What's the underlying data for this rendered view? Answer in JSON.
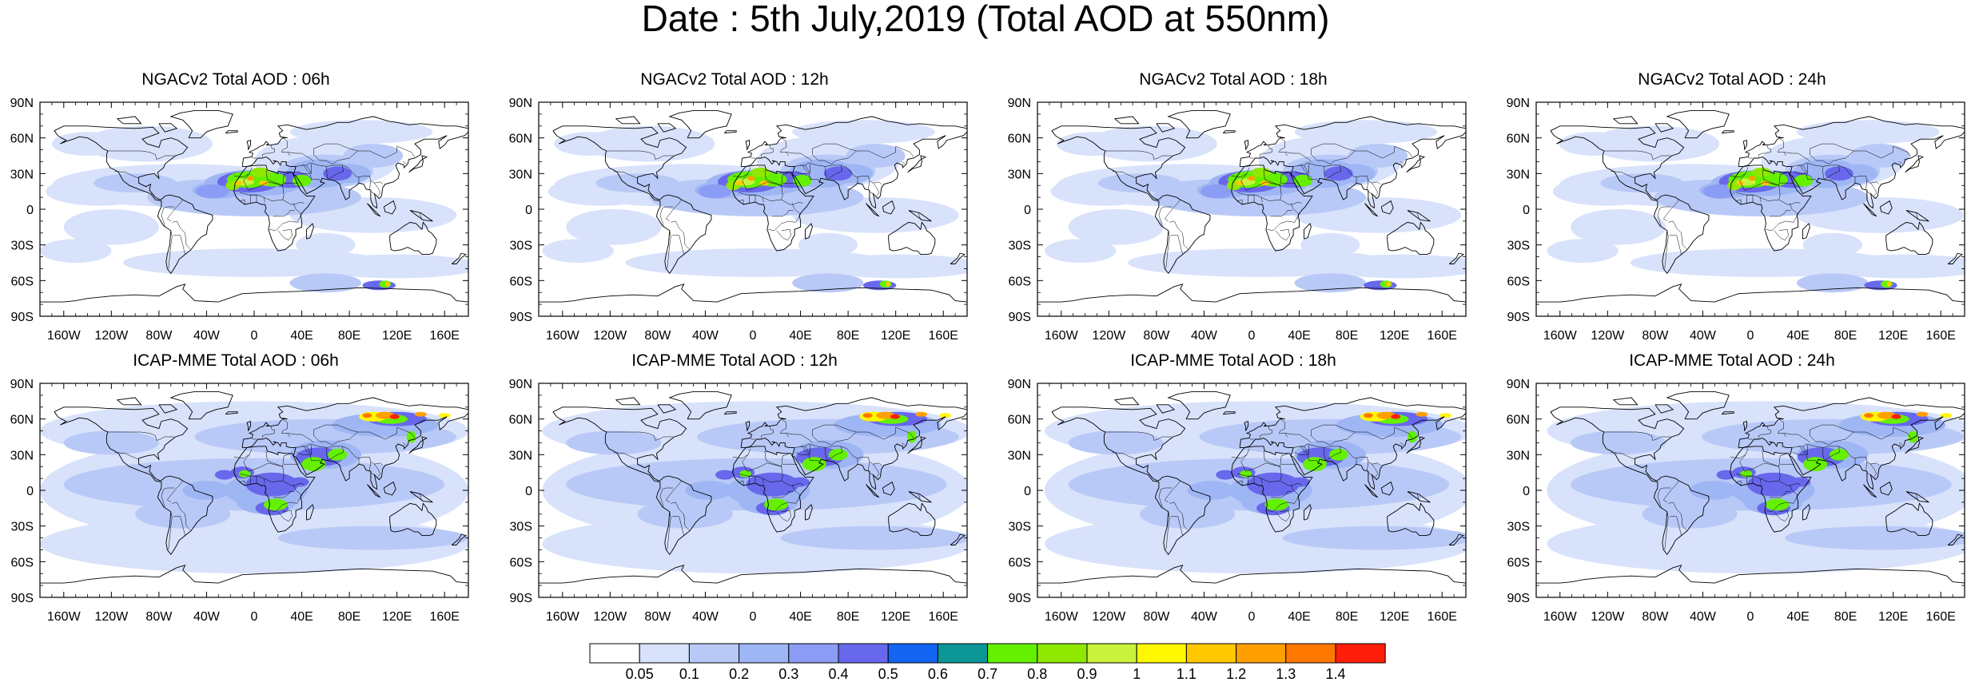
{
  "title": "Date : 5th July,2019 (Total AOD at 550nm)",
  "panels": [
    {
      "title": "NGACv2 Total AOD : 06h",
      "model": "NGACv2",
      "hour": "06h"
    },
    {
      "title": "NGACv2 Total AOD : 12h",
      "model": "NGACv2",
      "hour": "12h"
    },
    {
      "title": "NGACv2 Total AOD : 18h",
      "model": "NGACv2",
      "hour": "18h"
    },
    {
      "title": "NGACv2 Total AOD : 24h",
      "model": "NGACv2",
      "hour": "24h"
    },
    {
      "title": "ICAP-MME Total AOD : 06h",
      "model": "ICAP-MME",
      "hour": "06h"
    },
    {
      "title": "ICAP-MME Total AOD : 12h",
      "model": "ICAP-MME",
      "hour": "12h"
    },
    {
      "title": "ICAP-MME Total AOD : 18h",
      "model": "ICAP-MME",
      "hour": "18h"
    },
    {
      "title": "ICAP-MME Total AOD : 24h",
      "model": "ICAP-MME",
      "hour": "24h"
    }
  ],
  "axes": {
    "lat_labels": [
      "90N",
      "60N",
      "30N",
      "0",
      "30S",
      "60S",
      "90S"
    ],
    "lon_labels": [
      "160W",
      "120W",
      "80W",
      "40W",
      "0",
      "40E",
      "80E",
      "120E",
      "160E"
    ]
  },
  "colorbar": {
    "labels": [
      "0.05",
      "0.1",
      "0.2",
      "0.3",
      "0.4",
      "0.5",
      "0.6",
      "0.7",
      "0.8",
      "0.9",
      "1",
      "1.1",
      "1.2",
      "1.3",
      "1.4"
    ],
    "colors": [
      "#ffffff",
      "#d8e2fb",
      "#b9c9f7",
      "#9fb6f5",
      "#8a9cf4",
      "#6868ec",
      "#1464f2",
      "#0c9696",
      "#64f000",
      "#8ee800",
      "#c8f23c",
      "#fff800",
      "#ffc800",
      "#ffa000",
      "#ff7800",
      "#ff1e0a"
    ]
  }
}
